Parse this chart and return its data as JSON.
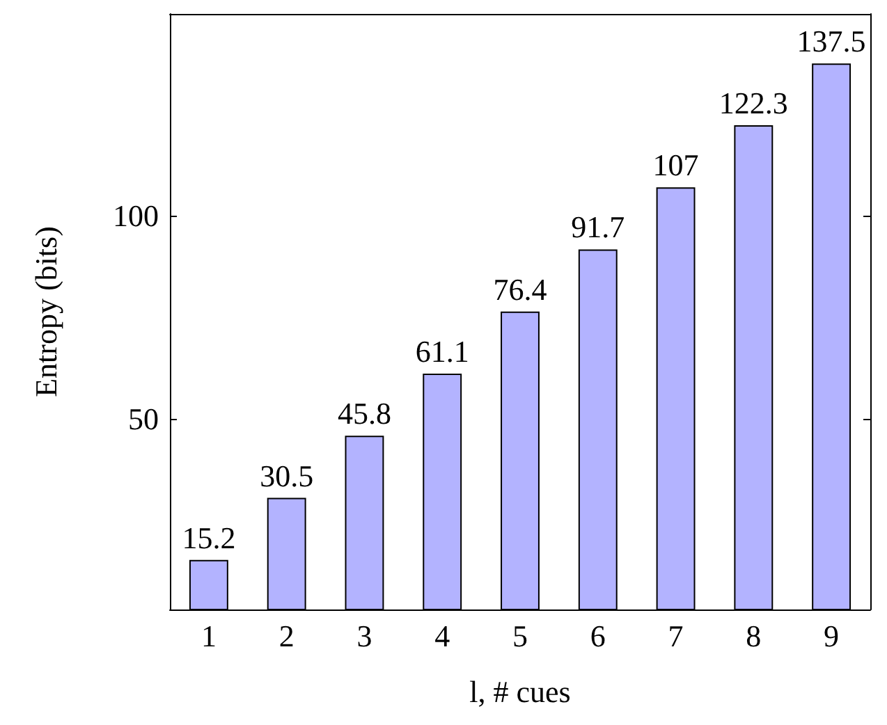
{
  "chart_data": {
    "type": "bar",
    "xlabel": "l, # cues",
    "ylabel": "Entropy (bits)",
    "categories": [
      "1",
      "2",
      "3",
      "4",
      "5",
      "6",
      "7",
      "8",
      "9"
    ],
    "values": [
      15.2,
      30.5,
      45.8,
      61.1,
      76.4,
      91.7,
      107,
      122.3,
      137.5
    ],
    "color": "#b3b3ff",
    "data_labels": true,
    "ylim": [
      3,
      149.7
    ],
    "yticks": [
      50,
      100
    ]
  }
}
